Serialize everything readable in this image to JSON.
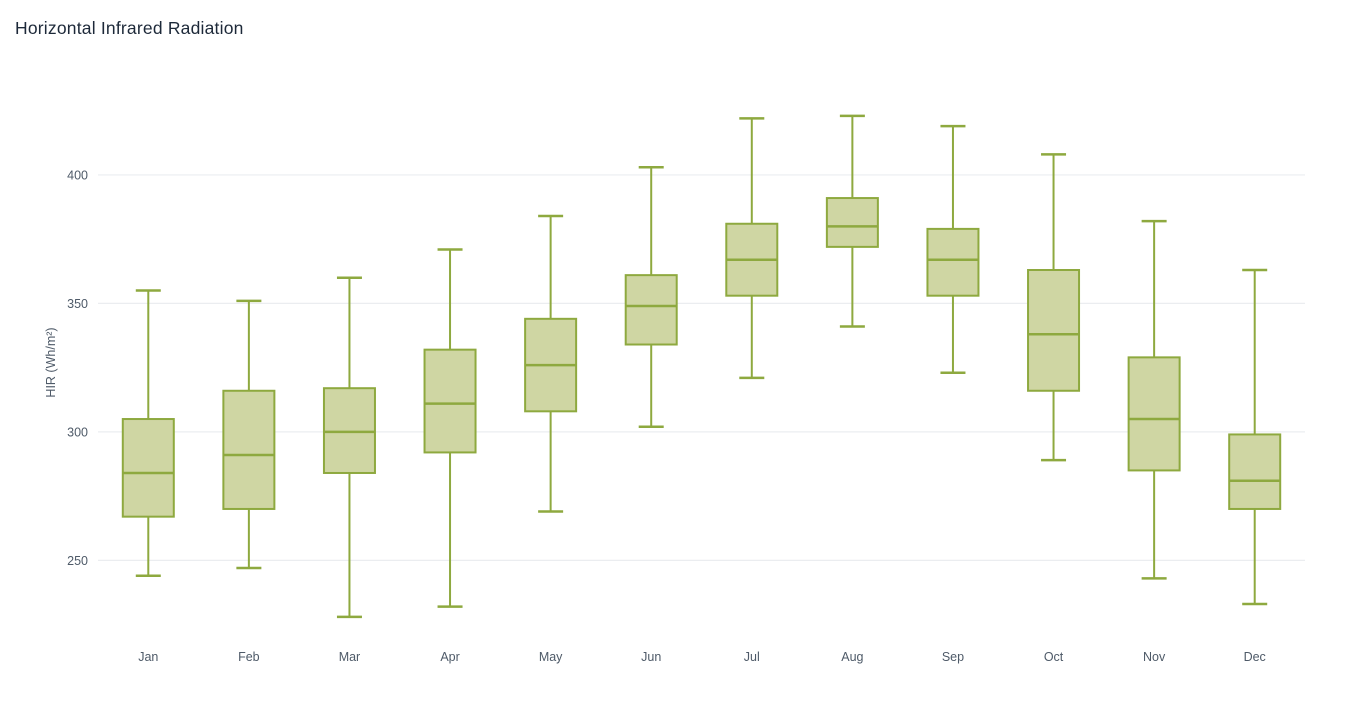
{
  "chart": {
    "title": "Horizontal Infrared Radiation"
  },
  "chart_data": {
    "type": "box",
    "title": "Horizontal Infrared Radiation",
    "xlabel": "",
    "ylabel": "HIR (Wh/m²)",
    "categories": [
      "Jan",
      "Feb",
      "Mar",
      "Apr",
      "May",
      "Jun",
      "Jul",
      "Aug",
      "Sep",
      "Oct",
      "Nov",
      "Dec"
    ],
    "series": [
      {
        "name": "HIR",
        "boxes": [
          {
            "category": "Jan",
            "min": 244,
            "q1": 267,
            "median": 284,
            "q3": 305,
            "max": 355
          },
          {
            "category": "Feb",
            "min": 247,
            "q1": 270,
            "median": 291,
            "q3": 316,
            "max": 351
          },
          {
            "category": "Mar",
            "min": 228,
            "q1": 284,
            "median": 300,
            "q3": 317,
            "max": 360
          },
          {
            "category": "Apr",
            "min": 232,
            "q1": 292,
            "median": 311,
            "q3": 332,
            "max": 371
          },
          {
            "category": "May",
            "min": 269,
            "q1": 308,
            "median": 326,
            "q3": 344,
            "max": 384
          },
          {
            "category": "Jun",
            "min": 302,
            "q1": 334,
            "median": 349,
            "q3": 361,
            "max": 403
          },
          {
            "category": "Jul",
            "min": 321,
            "q1": 353,
            "median": 367,
            "q3": 381,
            "max": 422
          },
          {
            "category": "Aug",
            "min": 341,
            "q1": 372,
            "median": 380,
            "q3": 391,
            "max": 423
          },
          {
            "category": "Sep",
            "min": 323,
            "q1": 353,
            "median": 367,
            "q3": 379,
            "max": 419
          },
          {
            "category": "Oct",
            "min": 289,
            "q1": 316,
            "median": 338,
            "q3": 363,
            "max": 408
          },
          {
            "category": "Nov",
            "min": 243,
            "q1": 285,
            "median": 305,
            "q3": 329,
            "max": 382
          },
          {
            "category": "Dec",
            "min": 233,
            "q1": 270,
            "median": 281,
            "q3": 299,
            "max": 363
          }
        ]
      }
    ],
    "yticks": [
      250,
      300,
      350,
      400
    ],
    "ylim": [
      219,
      435
    ],
    "grid": true,
    "legend": false,
    "colors": {
      "background": "#ffffff",
      "title": "#1d2939",
      "tick_label": "#4e5a68",
      "grid": "#ebedf0",
      "box_stroke": "#8ea93f",
      "box_fill": "#cfd6a3"
    }
  }
}
